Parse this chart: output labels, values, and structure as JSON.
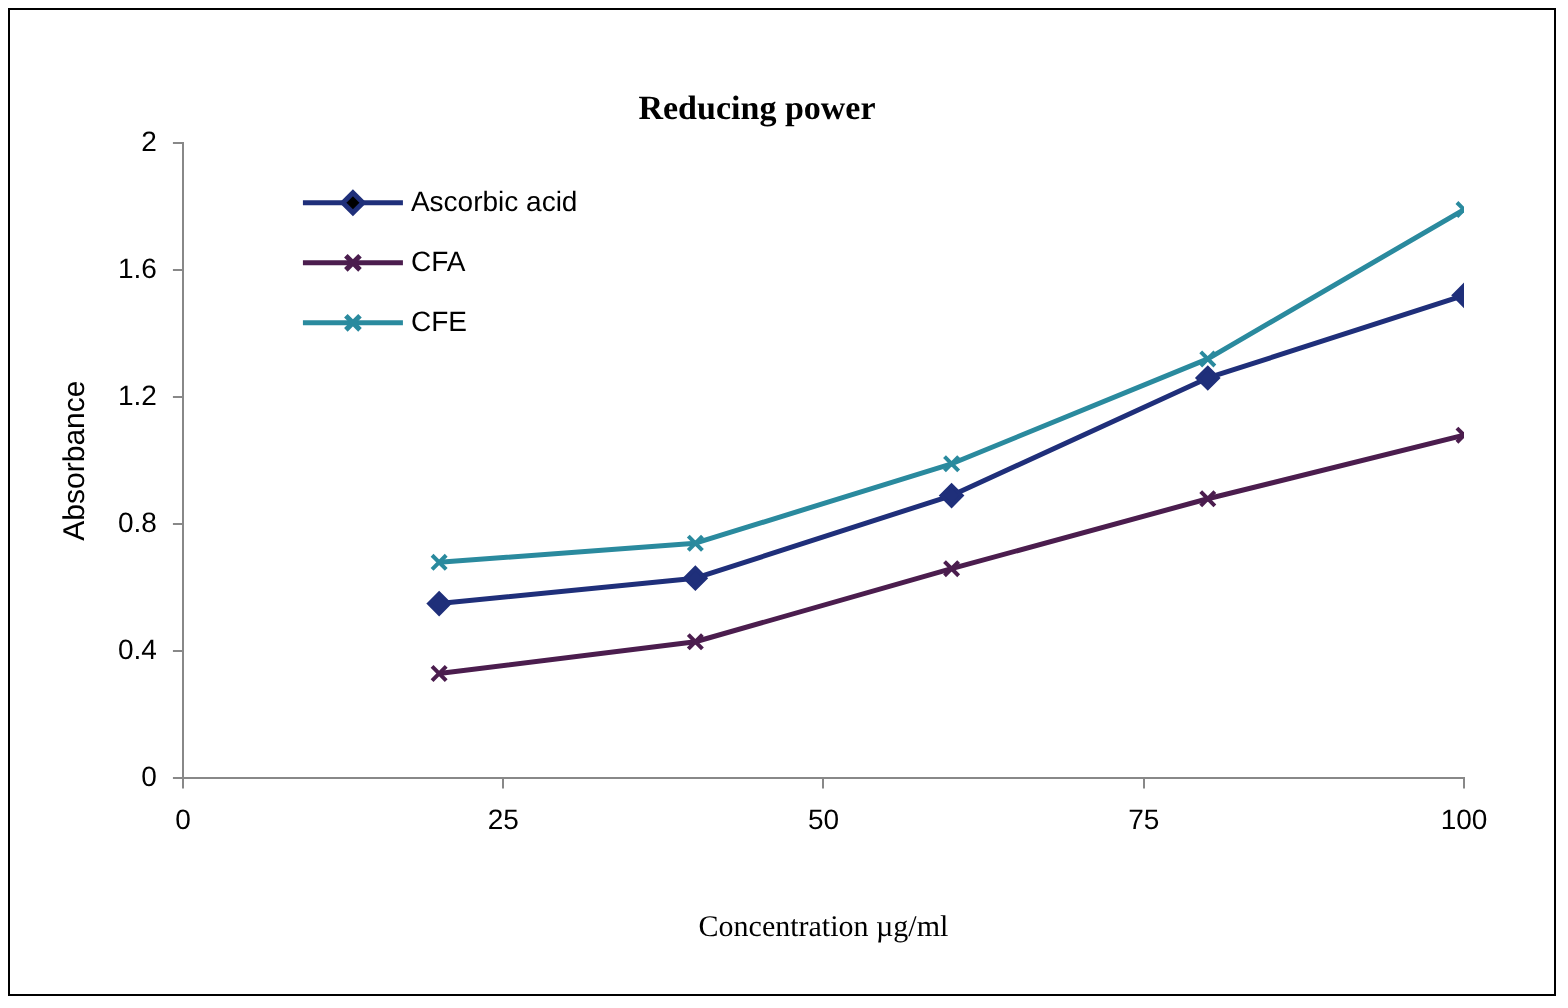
{
  "chart_data": {
    "type": "line",
    "title": "Reducing power",
    "xlabel": "Concentration µg/ml",
    "ylabel": "Absorbance",
    "x": [
      20,
      40,
      60,
      80,
      100
    ],
    "series": [
      {
        "name": "Ascorbic acid",
        "color": "#1f2f7a",
        "marker": "diamond",
        "values": [
          0.55,
          0.63,
          0.89,
          1.26,
          1.52
        ]
      },
      {
        "name": "CFA",
        "color": "#4b1d4e",
        "marker": "cross",
        "values": [
          0.33,
          0.43,
          0.66,
          0.88,
          1.08
        ]
      },
      {
        "name": "CFE",
        "color": "#2a8a9e",
        "marker": "cross",
        "values": [
          0.68,
          0.74,
          0.99,
          1.32,
          1.79
        ]
      }
    ],
    "xlim": [
      0,
      100
    ],
    "xticks": [
      0,
      25,
      50,
      75,
      100
    ],
    "ylim": [
      0,
      2
    ],
    "yticks": [
      0,
      0.4,
      0.8,
      1.2,
      1.6,
      2
    ],
    "grid": false,
    "legend": "top left",
    "line_style": "solid"
  }
}
